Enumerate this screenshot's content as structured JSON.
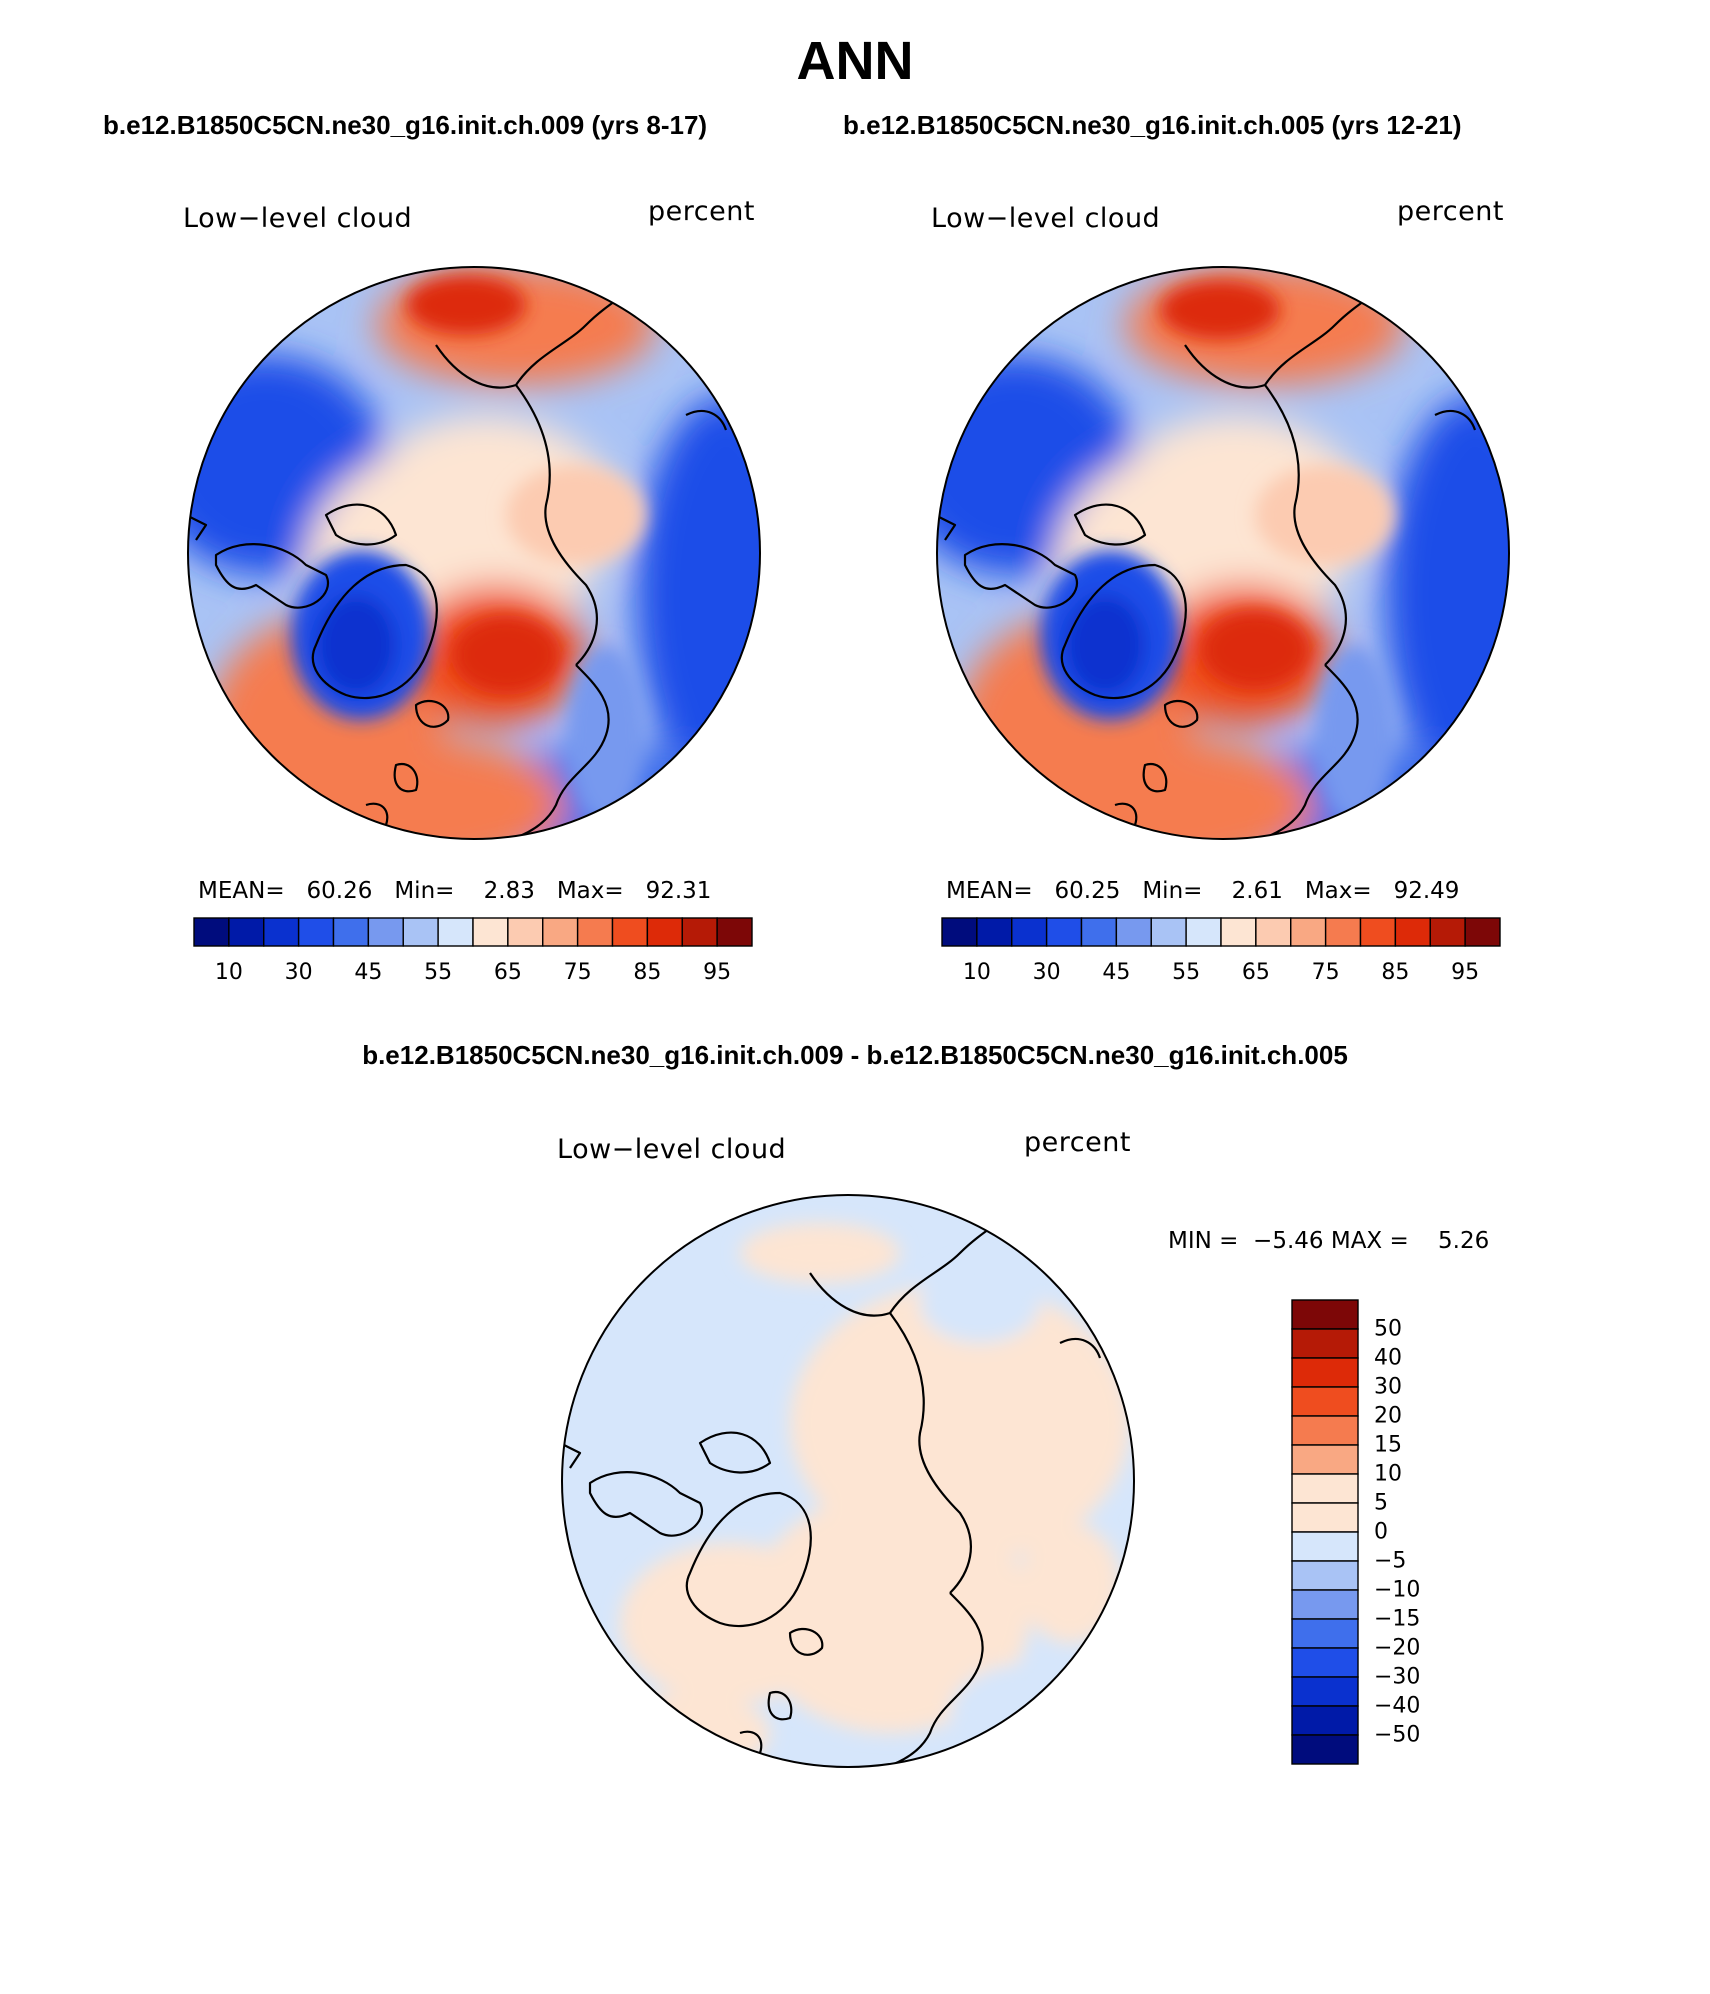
{
  "figure": {
    "title": "ANN",
    "panel_subtitle_left": "b.e12.B1850C5CN.ne30_g16.init.ch.009 (yrs 8-17)",
    "panel_subtitle_right": "b.e12.B1850C5CN.ne30_g16.init.ch.005 (yrs 12-21)",
    "diff_title": "b.e12.B1850C5CN.ne30_g16.init.ch.009 - b.e12.B1850C5CN.ne30_g16.init.ch.005"
  },
  "panels": [
    {
      "variable": "Low−level cloud",
      "units": "percent",
      "mean_label": "MEAN=",
      "mean": "60.26",
      "min_label": "Min=",
      "min": "2.83",
      "max_label": "Max=",
      "max": "92.31"
    },
    {
      "variable": "Low−level cloud",
      "units": "percent",
      "mean_label": "MEAN=",
      "mean": "60.25",
      "min_label": "Min=",
      "min": "2.61",
      "max_label": "Max=",
      "max": "92.49"
    }
  ],
  "diff_panel": {
    "variable": "Low−level cloud",
    "units": "percent",
    "min_label": "MIN =",
    "min": "−5.46",
    "max_label": "MAX =",
    "max": "5.26"
  },
  "colorbar_main": {
    "colors": [
      "#000c7d",
      "#001aa8",
      "#0a31cf",
      "#1f4ee8",
      "#3f6fec",
      "#7799ef",
      "#a9c3f5",
      "#d6e6fb",
      "#fde5d3",
      "#fccbb1",
      "#f9a883",
      "#f57b4f",
      "#ef4d1f",
      "#dd2a08",
      "#b51a06",
      "#7d0707"
    ],
    "tick_labels": [
      "10",
      "30",
      "45",
      "55",
      "65",
      "75",
      "85",
      "95"
    ],
    "tick_boundaries": [
      1,
      3,
      5,
      7,
      9,
      11,
      13,
      15
    ]
  },
  "colorbar_diff": {
    "colors_top_to_bottom": [
      "#7d0707",
      "#b51a06",
      "#dd2a08",
      "#ef4d1f",
      "#f57b4f",
      "#f9a883",
      "#fde5d3",
      "#d6e6fb",
      "#a9c3f5",
      "#7799ef",
      "#3f6fec",
      "#1f4ee8",
      "#0a31cf",
      "#001aa8",
      "#000c7d"
    ],
    "tick_labels": [
      "50",
      "40",
      "30",
      "20",
      "15",
      "10",
      "5",
      "0",
      "−5",
      "−10",
      "−15",
      "−20",
      "−30",
      "−40",
      "−50"
    ]
  },
  "chart_data": {
    "type": "heatmap",
    "projection": "north polar stereographic",
    "variable": "Low-level cloud",
    "units": "percent",
    "season": "ANN",
    "panels": [
      {
        "case": "b.e12.B1850C5CN.ne30_g16.init.ch.009",
        "years": "8-17",
        "mean": 60.26,
        "min": 2.83,
        "max": 92.31
      },
      {
        "case": "b.e12.B1850C5CN.ne30_g16.init.ch.005",
        "years": "12-21",
        "mean": 60.25,
        "min": 2.61,
        "max": 92.49
      },
      {
        "case": "difference (009 - 005)",
        "min": -5.46,
        "max": 5.26
      }
    ],
    "colorbar_levels_main": [
      10,
      30,
      45,
      55,
      65,
      75,
      85,
      95
    ],
    "colorbar_levels_diff": [
      -50,
      -40,
      -30,
      -20,
      -15,
      -10,
      -5,
      0,
      5,
      10,
      15,
      20,
      30,
      40,
      50
    ]
  }
}
